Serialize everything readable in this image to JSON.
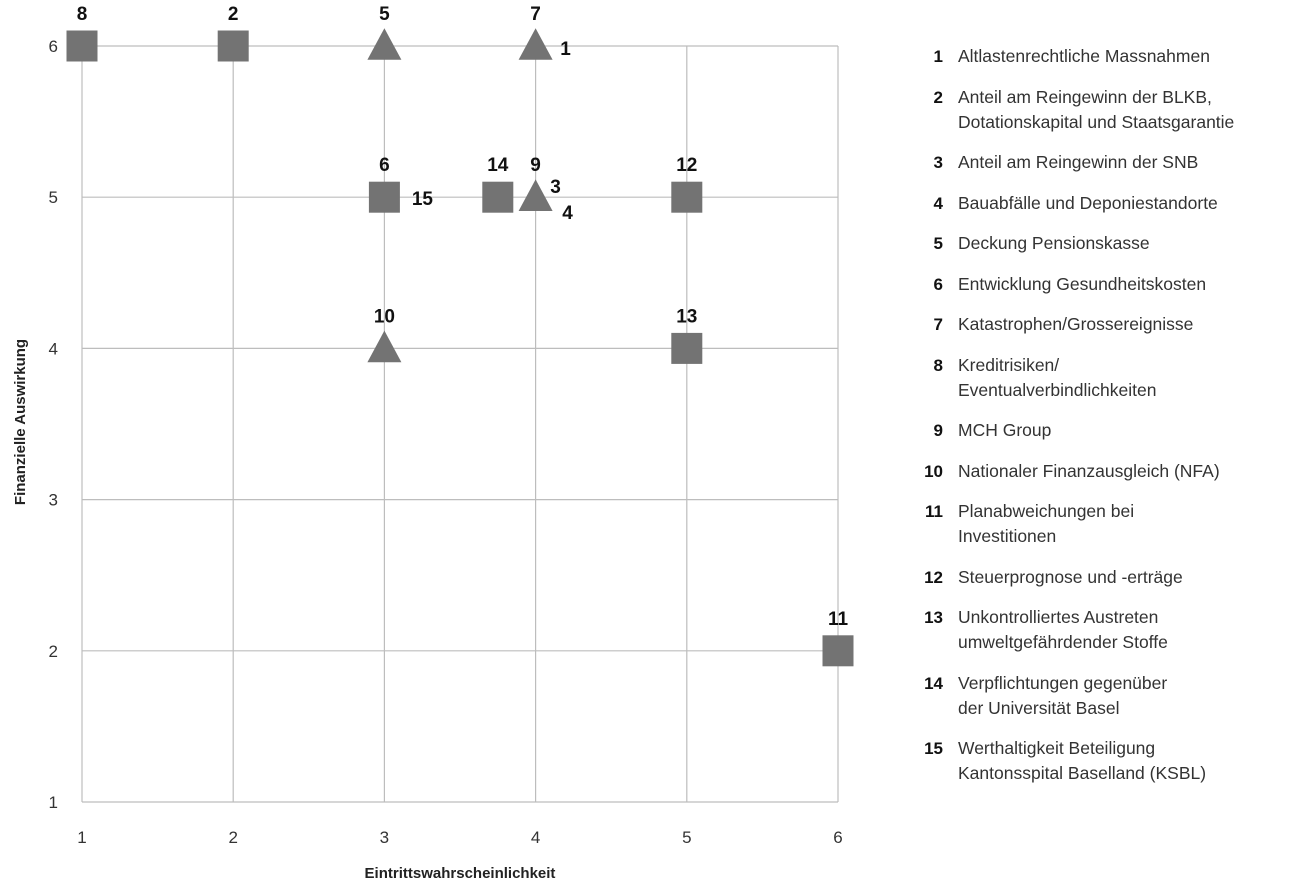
{
  "chart_data": {
    "type": "scatter",
    "title": "",
    "xlabel": "Eintrittswahrscheinlichkeit",
    "ylabel": "Finanzielle Auswirkung",
    "xlim": [
      1,
      6
    ],
    "ylim": [
      1,
      6
    ],
    "x_ticks": [
      "1",
      "2",
      "3",
      "4",
      "5",
      "6"
    ],
    "y_ticks": [
      "1",
      "2",
      "3",
      "4",
      "5",
      "6"
    ],
    "grid": true,
    "marker_color": "#737373",
    "points": [
      {
        "id": "1",
        "x": 4,
        "y": 6,
        "marker": "triangle"
      },
      {
        "id": "2",
        "x": 2,
        "y": 6,
        "marker": "square"
      },
      {
        "id": "3",
        "x": 4,
        "y": 5,
        "marker": "triangle"
      },
      {
        "id": "4",
        "x": 4,
        "y": 5,
        "marker": "triangle"
      },
      {
        "id": "5",
        "x": 3,
        "y": 6,
        "marker": "triangle"
      },
      {
        "id": "6",
        "x": 3,
        "y": 5,
        "marker": "square"
      },
      {
        "id": "7",
        "x": 4,
        "y": 6,
        "marker": "triangle"
      },
      {
        "id": "8",
        "x": 1,
        "y": 6,
        "marker": "square"
      },
      {
        "id": "9",
        "x": 4,
        "y": 5,
        "marker": "triangle"
      },
      {
        "id": "10",
        "x": 3,
        "y": 4,
        "marker": "triangle"
      },
      {
        "id": "11",
        "x": 6,
        "y": 2,
        "marker": "square"
      },
      {
        "id": "12",
        "x": 5,
        "y": 5,
        "marker": "square"
      },
      {
        "id": "13",
        "x": 5,
        "y": 4,
        "marker": "square"
      },
      {
        "id": "14",
        "x": 3.75,
        "y": 5,
        "marker": "square"
      },
      {
        "id": "15",
        "x": 3,
        "y": 5,
        "marker": "square"
      }
    ]
  },
  "legend": [
    {
      "num": "1",
      "text": "Altlastenrechtliche Massnahmen"
    },
    {
      "num": "2",
      "text": "Anteil am Reingewinn der BLKB,\nDotationskapital und Staatsgarantie"
    },
    {
      "num": "3",
      "text": "Anteil am Reingewinn der SNB"
    },
    {
      "num": "4",
      "text": "Bauabfälle und Deponiestandorte"
    },
    {
      "num": "5",
      "text": "Deckung Pensionskasse"
    },
    {
      "num": "6",
      "text": "Entwicklung Gesundheitskosten"
    },
    {
      "num": "7",
      "text": "Katastrophen/Grossereignisse"
    },
    {
      "num": "8",
      "text": "Kreditrisiken/\nEventualverbindlichkeiten"
    },
    {
      "num": "9",
      "text": "MCH Group"
    },
    {
      "num": "10",
      "text": "Nationaler Finanzausgleich (NFA)"
    },
    {
      "num": "11",
      "text": "Planabweichungen bei\nInvestitionen"
    },
    {
      "num": "12",
      "text": "Steuerprognose und -erträge"
    },
    {
      "num": "13",
      "text": "Unkontrolliertes Austreten\numweltgefährdender Stoffe"
    },
    {
      "num": "14",
      "text": "Verpflichtungen gegenüber\nder Universität Basel"
    },
    {
      "num": "15",
      "text": "Werthaltigkeit Beteiligung\nKantonsspital Baselland (KSBL)"
    }
  ]
}
